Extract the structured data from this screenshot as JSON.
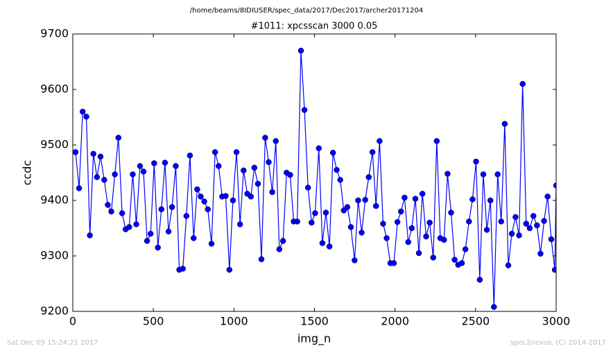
{
  "chart_data": {
    "type": "line",
    "path_title": "/home/beams/8IDIUSER/spec_data/2017/Dec2017/archer20171204",
    "title": "#1011: xpcsscan 3000 0.05",
    "x_label": "img_n",
    "y_label": "ccdc",
    "footer_left": "Sat Dec 09 15:24:21 2017",
    "footer_right": "spec2nexus, (C) 2014-2017",
    "xlim": [
      0,
      3000
    ],
    "xticks": [
      0,
      500,
      1000,
      1500,
      2000,
      2500,
      3000
    ],
    "ylim": [
      9200,
      9700
    ],
    "yticks": [
      9200,
      9300,
      9400,
      9500,
      9600,
      9700
    ],
    "series": [
      {
        "color": "#0000ff",
        "x": [
          17,
          39,
          61,
          84,
          106,
          128,
          150,
          172,
          195,
          217,
          239,
          261,
          283,
          306,
          328,
          350,
          372,
          394,
          417,
          439,
          461,
          483,
          505,
          528,
          550,
          572,
          594,
          616,
          639,
          661,
          683,
          705,
          727,
          750,
          772,
          794,
          816,
          838,
          861,
          883,
          905,
          927,
          949,
          972,
          994,
          1016,
          1038,
          1060,
          1083,
          1105,
          1127,
          1149,
          1171,
          1194,
          1216,
          1238,
          1260,
          1282,
          1305,
          1327,
          1349,
          1371,
          1393,
          1416,
          1438,
          1460,
          1482,
          1504,
          1527,
          1549,
          1571,
          1593,
          1615,
          1638,
          1660,
          1682,
          1704,
          1726,
          1749,
          1771,
          1793,
          1815,
          1837,
          1860,
          1882,
          1904,
          1926,
          1948,
          1971,
          1993,
          2015,
          2037,
          2059,
          2082,
          2104,
          2126,
          2148,
          2170,
          2193,
          2215,
          2237,
          2259,
          2281,
          2304,
          2326,
          2348,
          2370,
          2392,
          2415,
          2437,
          2459,
          2481,
          2503,
          2526,
          2548,
          2570,
          2592,
          2614,
          2637,
          2659,
          2681,
          2703,
          2725,
          2748,
          2770,
          2792,
          2814,
          2836,
          2859,
          2881,
          2903,
          2925,
          2947,
          2970,
          2992,
          3000
        ],
        "values": [
          9487,
          9422,
          9560,
          9551,
          9337,
          9484,
          9442,
          9479,
          9437,
          9392,
          9380,
          9447,
          9513,
          9377,
          9348,
          9352,
          9447,
          9357,
          9462,
          9452,
          9327,
          9340,
          9467,
          9315,
          9384,
          9468,
          9344,
          9388,
          9462,
          9275,
          9277,
          9372,
          9481,
          9332,
          9420,
          9407,
          9398,
          9384,
          9322,
          9487,
          9462,
          9407,
          9408,
          9275,
          9400,
          9487,
          9357,
          9454,
          9412,
          9407,
          9459,
          9430,
          9294,
          9513,
          9469,
          9415,
          9507,
          9312,
          9327,
          9450,
          9446,
          9362,
          9362,
          9670,
          9563,
          9423,
          9360,
          9377,
          9494,
          9323,
          9378,
          9317,
          9486,
          9455,
          9437,
          9382,
          9388,
          9352,
          9292,
          9400,
          9342,
          9401,
          9442,
          9487,
          9390,
          9507,
          9358,
          9332,
          9287,
          9287,
          9361,
          9380,
          9405,
          9325,
          9350,
          9403,
          9305,
          9412,
          9335,
          9360,
          9297,
          9507,
          9332,
          9329,
          9448,
          9378,
          9293,
          9284,
          9287,
          9312,
          9362,
          9402,
          9470,
          9257,
          9447,
          9347,
          9400,
          9208,
          9447,
          9362,
          9538,
          9283,
          9340,
          9370,
          9337,
          9610,
          9358,
          9350,
          9372,
          9355,
          9304,
          9363,
          9407,
          9330,
          9275,
          9427
        ]
      }
    ]
  }
}
